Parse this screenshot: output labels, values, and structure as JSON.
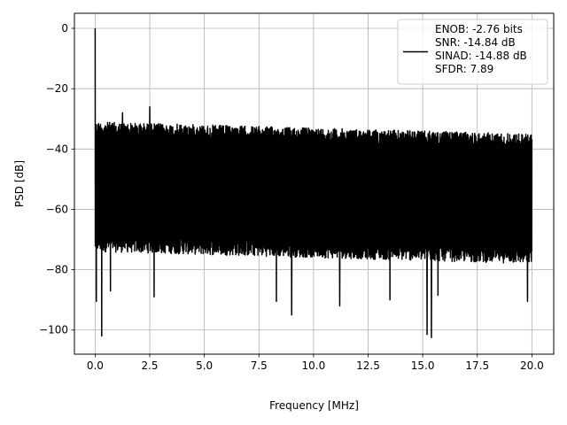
{
  "chart_data": {
    "type": "line",
    "title": "",
    "xlabel": "Frequency [MHz]",
    "ylabel": "PSD [dB]",
    "xlim": [
      -0.95,
      21.0
    ],
    "ylim": [
      -108,
      5
    ],
    "xticks": [
      0,
      2.5,
      5,
      7.5,
      10,
      12.5,
      15,
      17.5,
      20
    ],
    "xtick_labels": [
      "0.0",
      "2.5",
      "5.0",
      "7.5",
      "10.0",
      "12.5",
      "15.0",
      "17.5",
      "20.0"
    ],
    "yticks": [
      0,
      -20,
      -40,
      -60,
      -80,
      -100
    ],
    "ytick_labels": [
      "0",
      "−20",
      "−40",
      "−60",
      "−80",
      "−100"
    ],
    "grid": true,
    "legend_position": "top-right",
    "line_color": "#000000",
    "series": [
      {
        "name": "ENOB: -2.76 bits\nSNR: -14.84 dB\nSINAD: -14.88 dB\nSFDR: 7.89",
        "x_range": [
          0,
          20
        ],
        "noise_ceiling_db": [
          -31,
          -35
        ],
        "noise_floor_db": [
          -74,
          -78
        ],
        "peaks": [
          {
            "x": 0.0,
            "y": 0
          },
          {
            "x": 0.05,
            "y": -20
          },
          {
            "x": 1.25,
            "y": -28
          },
          {
            "x": 2.5,
            "y": -26
          }
        ],
        "dips": [
          {
            "x": 0.05,
            "y": -90.5
          },
          {
            "x": 0.3,
            "y": -102
          },
          {
            "x": 0.7,
            "y": -87
          },
          {
            "x": 2.7,
            "y": -89
          },
          {
            "x": 8.3,
            "y": -90.5
          },
          {
            "x": 9.0,
            "y": -95
          },
          {
            "x": 11.2,
            "y": -92
          },
          {
            "x": 13.5,
            "y": -90
          },
          {
            "x": 15.2,
            "y": -101.5
          },
          {
            "x": 15.4,
            "y": -102.5
          },
          {
            "x": 15.7,
            "y": -88.5
          },
          {
            "x": 19.8,
            "y": -90.5
          }
        ]
      }
    ],
    "legend_lines": [
      "ENOB: -2.76 bits",
      "SNR: -14.84 dB",
      "SINAD: -14.88 dB",
      "SFDR: 7.89"
    ]
  }
}
